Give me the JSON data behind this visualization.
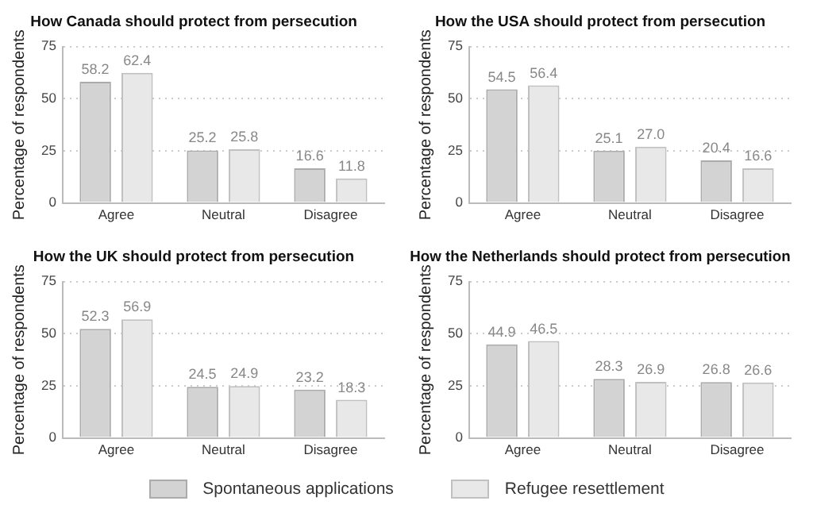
{
  "chart_data": [
    {
      "type": "bar",
      "title": "How Canada should protect from persecution",
      "ylabel": "Percentage of respondents",
      "categories": [
        "Agree",
        "Neutral",
        "Disagree"
      ],
      "series": [
        {
          "name": "Spontaneous applications",
          "color": "#d3d3d3",
          "values": [
            58.2,
            25.2,
            16.6
          ],
          "value_labels": [
            "58.2",
            "25.2",
            "16.6"
          ]
        },
        {
          "name": "Refugee resettlement",
          "color": "#e8e8e8",
          "values": [
            62.4,
            25.8,
            11.8
          ],
          "value_labels": [
            "62.4",
            "25.8",
            "11.8"
          ]
        }
      ],
      "ylim": [
        0,
        75
      ],
      "yticks": [
        0,
        25,
        50,
        75
      ],
      "grid": "y",
      "legend": "bottom"
    },
    {
      "type": "bar",
      "title": "How the USA should protect from persecution",
      "ylabel": "Percentage of respondents",
      "categories": [
        "Agree",
        "Neutral",
        "Disagree"
      ],
      "series": [
        {
          "color": "#d3d3d3",
          "values": [
            54.5,
            25.1,
            20.4
          ],
          "value_labels": [
            "54.5",
            "25.1",
            "20.4"
          ]
        },
        {
          "color": "#e8e8e8",
          "values": [
            56.4,
            27.0,
            16.6
          ],
          "value_labels": [
            "56.4",
            "27.0",
            "16.6"
          ]
        }
      ],
      "ylim": [
        0,
        75
      ],
      "yticks": [
        0,
        25,
        50,
        75
      ],
      "grid": "y"
    },
    {
      "type": "bar",
      "title": "How the UK should protect from persecution",
      "ylabel": "Percentage of respondents",
      "categories": [
        "Agree",
        "Neutral",
        "Disagree"
      ],
      "series": [
        {
          "color": "#d3d3d3",
          "values": [
            52.3,
            24.5,
            23.2
          ],
          "value_labels": [
            "52.3",
            "24.5",
            "23.2"
          ]
        },
        {
          "color": "#e8e8e8",
          "values": [
            56.9,
            24.9,
            18.3
          ],
          "value_labels": [
            "56.9",
            "24.9",
            "18.3"
          ]
        }
      ],
      "ylim": [
        0,
        75
      ],
      "yticks": [
        0,
        25,
        50,
        75
      ],
      "grid": "y"
    },
    {
      "type": "bar",
      "title": "How the Netherlands should protect from persecution",
      "ylabel": "Percentage of respondents",
      "categories": [
        "Agree",
        "Neutral",
        "Disagree"
      ],
      "series": [
        {
          "color": "#d3d3d3",
          "values": [
            44.9,
            28.3,
            26.8
          ],
          "value_labels": [
            "44.9",
            "28.3",
            "26.8"
          ]
        },
        {
          "color": "#e8e8e8",
          "values": [
            46.5,
            26.9,
            26.6
          ],
          "value_labels": [
            "46.5",
            "26.9",
            "26.6"
          ]
        }
      ],
      "ylim": [
        0,
        75
      ],
      "yticks": [
        0,
        25,
        50,
        75
      ],
      "grid": "y"
    }
  ]
}
